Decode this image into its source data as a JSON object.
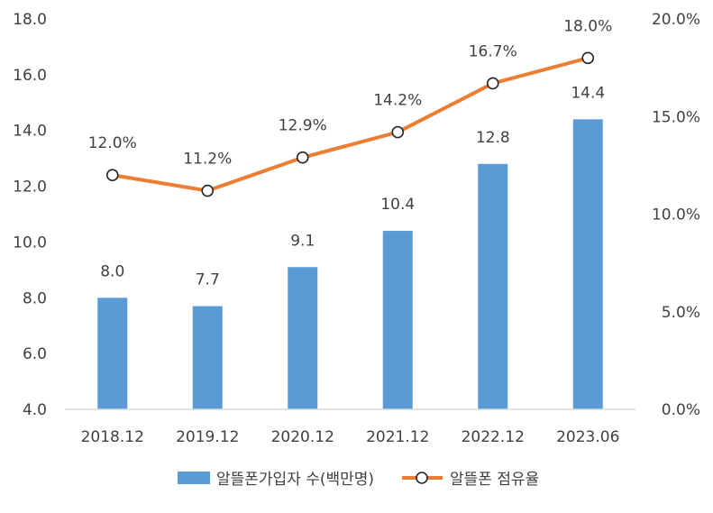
{
  "chart_data": {
    "type": "bar",
    "categories": [
      "2018.12",
      "2019.12",
      "2020.12",
      "2021.12",
      "2022.12",
      "2023.06"
    ],
    "series": [
      {
        "name": "알뜰폰가입자 수(백만명)",
        "type": "bar",
        "axis": "left",
        "values": [
          8.0,
          7.7,
          9.1,
          10.4,
          12.8,
          14.4
        ],
        "labels": [
          "8.0",
          "7.7",
          "9.1",
          "10.4",
          "12.8",
          "14.4"
        ],
        "color": "#5B9BD5"
      },
      {
        "name": "알뜰폰 점유율",
        "type": "line",
        "axis": "right",
        "values": [
          12.0,
          11.2,
          12.9,
          14.2,
          16.7,
          18.0
        ],
        "labels": [
          "12.0%",
          "11.2%",
          "12.9%",
          "14.2%",
          "16.7%",
          "18.0%"
        ],
        "color": "#ED7D31"
      }
    ],
    "y_left": {
      "ylim": [
        4.0,
        18.0
      ],
      "ticks": [
        4.0,
        6.0,
        8.0,
        10.0,
        12.0,
        14.0,
        16.0,
        18.0
      ],
      "tick_labels": [
        "4.0",
        "6.0",
        "8.0",
        "10.0",
        "12.0",
        "14.0",
        "16.0",
        "18.0"
      ]
    },
    "y_right": {
      "ylim": [
        0.0,
        20.0
      ],
      "ticks": [
        0,
        5,
        10,
        15,
        20
      ],
      "tick_labels": [
        "0.0%",
        "5.0%",
        "10.0%",
        "15.0%",
        "20.0%"
      ]
    },
    "grid": false,
    "legend": "bottom",
    "title": "",
    "xlabel": "",
    "ylabel": ""
  }
}
